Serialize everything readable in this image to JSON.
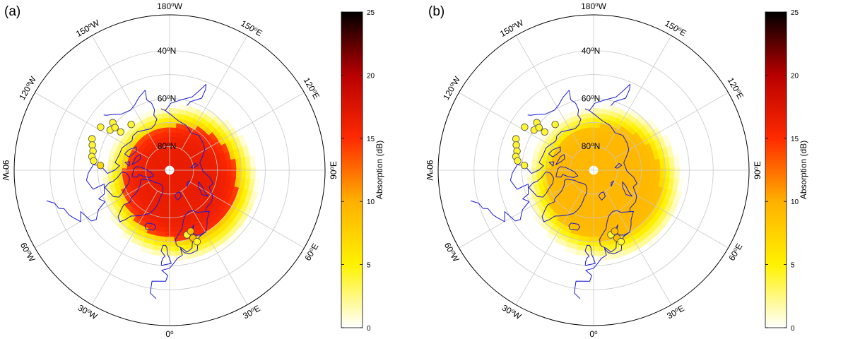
{
  "colorbar": {
    "label": "Absorption (dB)",
    "ticks": [
      "0",
      "5",
      "10",
      "15",
      "20",
      "25"
    ],
    "range": [
      0,
      25
    ],
    "colors": [
      "#ffffff",
      "#fff200",
      "#ffb000",
      "#ff2a00",
      "#b80000",
      "#000000"
    ]
  },
  "graticule": {
    "longitude_labels": [
      {
        "deg": 180,
        "text": "180",
        "sup": "o",
        "hem": "W"
      },
      {
        "deg": 150,
        "text": "150",
        "sup": "o",
        "hem": "E"
      },
      {
        "deg": 120,
        "text": "120",
        "sup": "o",
        "hem": "E"
      },
      {
        "deg": 90,
        "text": "90",
        "sup": "o",
        "hem": "E"
      },
      {
        "deg": 60,
        "text": "60",
        "sup": "o",
        "hem": "E"
      },
      {
        "deg": 30,
        "text": "30",
        "sup": "o",
        "hem": "E"
      },
      {
        "deg": 0,
        "text": "0",
        "sup": "o",
        "hem": ""
      },
      {
        "deg": -30,
        "text": "30",
        "sup": "o",
        "hem": "W"
      },
      {
        "deg": -60,
        "text": "60",
        "sup": "o",
        "hem": "W"
      },
      {
        "deg": -90,
        "text": "90",
        "sup": "o",
        "hem": "W"
      },
      {
        "deg": -120,
        "text": "120",
        "sup": "o",
        "hem": "W"
      },
      {
        "deg": -150,
        "text": "150",
        "sup": "o",
        "hem": "W"
      }
    ],
    "latitude_labels": [
      {
        "deg": 40,
        "text": "40",
        "sup": "o",
        "hem": "N"
      },
      {
        "deg": 60,
        "text": "60",
        "sup": "o",
        "hem": "N"
      },
      {
        "deg": 80,
        "text": "80",
        "sup": "o",
        "hem": "N"
      }
    ],
    "latitude_circles": [
      40,
      50,
      60,
      70,
      80
    ],
    "outer_latitude": 25,
    "line_color": "#c8c8c8"
  },
  "panels": [
    {
      "id": "a",
      "label": "(a)",
      "peak_absorption_db": 16.5,
      "edge_absorption_db": 8,
      "cap_radius_deg": 24,
      "cap_center": {
        "lat": 83,
        "lon": 40
      },
      "stations": [
        {
          "lat": 55,
          "lon": -112,
          "db": 4
        },
        {
          "lat": 56,
          "lon": -108,
          "db": 4
        },
        {
          "lat": 57,
          "lon": -104,
          "db": 4
        },
        {
          "lat": 57,
          "lon": -100,
          "db": 4
        },
        {
          "lat": 58,
          "lon": -97,
          "db": 4
        },
        {
          "lat": 61,
          "lon": -94,
          "db": 7
        },
        {
          "lat": 56,
          "lon": -122,
          "db": 4
        },
        {
          "lat": 60,
          "lon": -124,
          "db": 4
        },
        {
          "lat": 59,
          "lon": -130,
          "db": 4
        },
        {
          "lat": 61,
          "lon": -128,
          "db": 4
        },
        {
          "lat": 64,
          "lon": -128,
          "db": 4
        },
        {
          "lat": 65,
          "lon": -140,
          "db": 4
        },
        {
          "lat": 62,
          "lon": 15,
          "db": 4
        },
        {
          "lat": 63,
          "lon": 19,
          "db": 9
        },
        {
          "lat": 60,
          "lon": 19,
          "db": 9
        },
        {
          "lat": 58,
          "lon": 21,
          "db": 4
        }
      ]
    },
    {
      "id": "b",
      "label": "(b)",
      "peak_absorption_db": 9.5,
      "edge_absorption_db": 7,
      "cap_radius_deg": 24,
      "cap_center": {
        "lat": 83,
        "lon": 40
      },
      "stations": [
        {
          "lat": 55,
          "lon": -112,
          "db": 4
        },
        {
          "lat": 56,
          "lon": -108,
          "db": 4
        },
        {
          "lat": 57,
          "lon": -104,
          "db": 4
        },
        {
          "lat": 57,
          "lon": -100,
          "db": 4
        },
        {
          "lat": 58,
          "lon": -97,
          "db": 4
        },
        {
          "lat": 61,
          "lon": -94,
          "db": 4
        },
        {
          "lat": 56,
          "lon": -122,
          "db": 4
        },
        {
          "lat": 60,
          "lon": -124,
          "db": 4
        },
        {
          "lat": 59,
          "lon": -130,
          "db": 4
        },
        {
          "lat": 61,
          "lon": -128,
          "db": 4
        },
        {
          "lat": 64,
          "lon": -128,
          "db": 4
        },
        {
          "lat": 65,
          "lon": -140,
          "db": 4
        },
        {
          "lat": 62,
          "lon": 15,
          "db": 4
        },
        {
          "lat": 63,
          "lon": 19,
          "db": 9
        },
        {
          "lat": 60,
          "lon": 19,
          "db": 9
        },
        {
          "lat": 58,
          "lon": 21,
          "db": 4
        }
      ]
    }
  ],
  "coastline_color": "#1a1ad6"
}
